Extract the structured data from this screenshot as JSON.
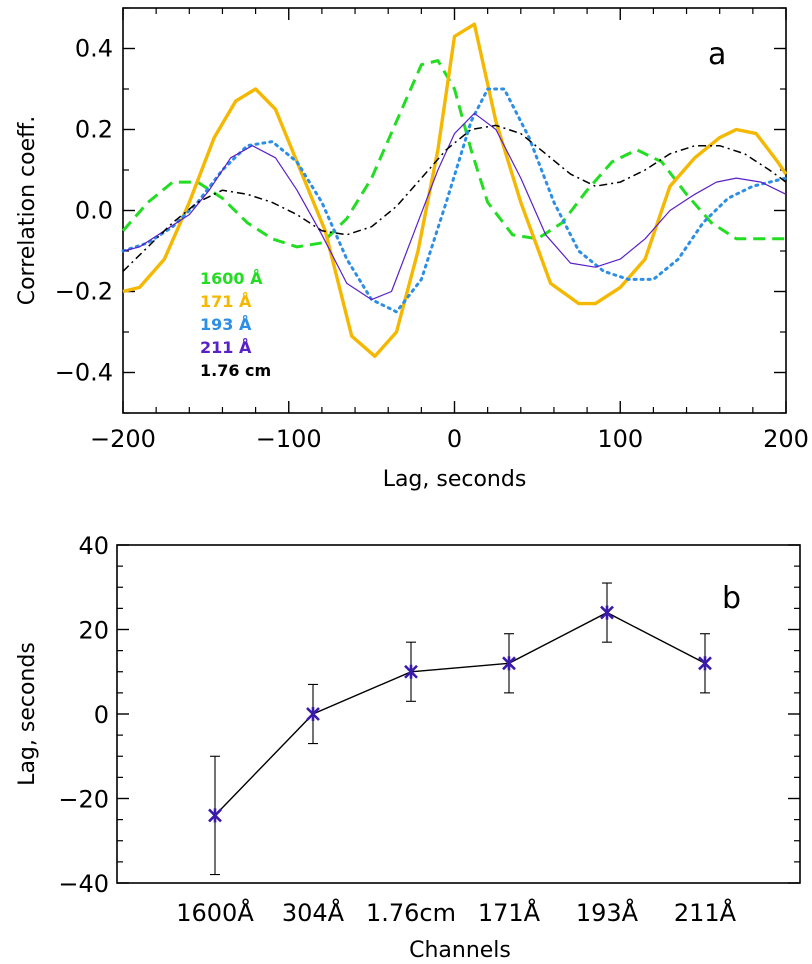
{
  "chart_data": [
    {
      "type": "line",
      "panel_label": "a",
      "xlabel": "Lag, seconds",
      "ylabel": "Correlation coeff.",
      "xlim": [
        -200,
        200
      ],
      "ylim": [
        -0.5,
        0.5
      ],
      "xticks": [
        -200,
        -100,
        0,
        100,
        200
      ],
      "yticks": [
        -0.4,
        -0.2,
        0.0,
        0.2,
        0.4
      ],
      "xtick_labels": [
        "−200",
        "−100",
        "0",
        "100",
        "200"
      ],
      "ytick_labels": [
        "−0.4",
        "−0.2",
        "0.0",
        "0.2",
        "0.4"
      ],
      "legend_placement": "lower-left",
      "series": [
        {
          "name": "1600 Å",
          "color": "#22dd22",
          "style": "dashed",
          "x": [
            -200,
            -185,
            -170,
            -155,
            -140,
            -125,
            -110,
            -95,
            -80,
            -65,
            -50,
            -35,
            -20,
            -10,
            0,
            10,
            20,
            35,
            50,
            65,
            80,
            95,
            110,
            125,
            140,
            155,
            170,
            185,
            200
          ],
          "y": [
            -0.05,
            0.02,
            0.07,
            0.07,
            0.03,
            -0.03,
            -0.07,
            -0.09,
            -0.08,
            -0.02,
            0.08,
            0.22,
            0.36,
            0.37,
            0.3,
            0.15,
            0.02,
            -0.06,
            -0.07,
            -0.03,
            0.05,
            0.12,
            0.15,
            0.12,
            0.04,
            -0.03,
            -0.07,
            -0.07,
            -0.07
          ]
        },
        {
          "name": "171 Å",
          "color": "#f5b800",
          "style": "solid-thick",
          "x": [
            -200,
            -190,
            -175,
            -160,
            -145,
            -132,
            -120,
            -108,
            -95,
            -78,
            -62,
            -48,
            -35,
            -22,
            -10,
            0,
            12,
            25,
            40,
            58,
            75,
            85,
            100,
            115,
            130,
            145,
            160,
            170,
            182,
            195,
            200
          ],
          "y": [
            -0.2,
            -0.19,
            -0.12,
            0.02,
            0.18,
            0.27,
            0.3,
            0.25,
            0.12,
            -0.05,
            -0.31,
            -0.36,
            -0.3,
            -0.1,
            0.15,
            0.43,
            0.46,
            0.22,
            0.02,
            -0.18,
            -0.23,
            -0.23,
            -0.19,
            -0.12,
            0.06,
            0.13,
            0.18,
            0.2,
            0.19,
            0.12,
            0.09
          ]
        },
        {
          "name": "193 Å",
          "color": "#2c8fe5",
          "style": "dotted",
          "x": [
            -200,
            -185,
            -170,
            -155,
            -140,
            -125,
            -110,
            -95,
            -80,
            -65,
            -50,
            -35,
            -20,
            -5,
            10,
            20,
            30,
            45,
            60,
            75,
            90,
            105,
            120,
            135,
            150,
            165,
            180,
            200
          ],
          "y": [
            -0.1,
            -0.08,
            -0.04,
            0.02,
            0.1,
            0.16,
            0.17,
            0.12,
            0.02,
            -0.12,
            -0.22,
            -0.25,
            -0.17,
            0.02,
            0.22,
            0.3,
            0.3,
            0.18,
            0.02,
            -0.1,
            -0.15,
            -0.17,
            -0.17,
            -0.12,
            -0.03,
            0.03,
            0.06,
            0.08
          ]
        },
        {
          "name": "211 Å",
          "color": "#5a20c8",
          "style": "solid-thin",
          "x": [
            -200,
            -190,
            -175,
            -160,
            -148,
            -135,
            -122,
            -108,
            -95,
            -80,
            -65,
            -50,
            -38,
            -25,
            -10,
            0,
            12,
            25,
            40,
            55,
            70,
            85,
            100,
            115,
            130,
            145,
            158,
            170,
            185,
            200
          ],
          "y": [
            -0.1,
            -0.09,
            -0.05,
            -0.01,
            0.05,
            0.13,
            0.16,
            0.13,
            0.05,
            -0.06,
            -0.18,
            -0.22,
            -0.2,
            -0.06,
            0.1,
            0.19,
            0.24,
            0.2,
            0.08,
            -0.06,
            -0.13,
            -0.14,
            -0.12,
            -0.07,
            0.0,
            0.04,
            0.07,
            0.08,
            0.07,
            0.04
          ]
        },
        {
          "name": "1.76 cm",
          "color": "#000000",
          "style": "dashdot",
          "x": [
            -200,
            -185,
            -170,
            -155,
            -140,
            -125,
            -110,
            -95,
            -80,
            -65,
            -50,
            -35,
            -20,
            -5,
            10,
            25,
            40,
            55,
            70,
            85,
            100,
            115,
            130,
            145,
            160,
            175,
            190,
            200
          ],
          "y": [
            -0.15,
            -0.09,
            -0.03,
            0.02,
            0.05,
            0.04,
            0.02,
            -0.01,
            -0.05,
            -0.06,
            -0.04,
            0.01,
            0.08,
            0.15,
            0.2,
            0.21,
            0.19,
            0.14,
            0.09,
            0.06,
            0.07,
            0.1,
            0.14,
            0.16,
            0.16,
            0.14,
            0.1,
            0.07
          ]
        }
      ]
    },
    {
      "type": "scatter",
      "panel_label": "b",
      "xlabel": "Channels",
      "ylabel": "Lag, seconds",
      "ylim": [
        -40,
        40
      ],
      "yticks": [
        -40,
        -20,
        0,
        20,
        40
      ],
      "ytick_labels": [
        "−40",
        "−20",
        "0",
        "20",
        "40"
      ],
      "marker_color": "#3a1aa8",
      "line_color": "#000000",
      "categories": [
        "1600Å",
        "304Å",
        "1.76cm",
        "171Å",
        "193Å",
        "211Å"
      ],
      "values": [
        -24,
        0,
        10,
        12,
        24,
        12
      ],
      "error": [
        14,
        7,
        7,
        7,
        7,
        7
      ]
    }
  ]
}
